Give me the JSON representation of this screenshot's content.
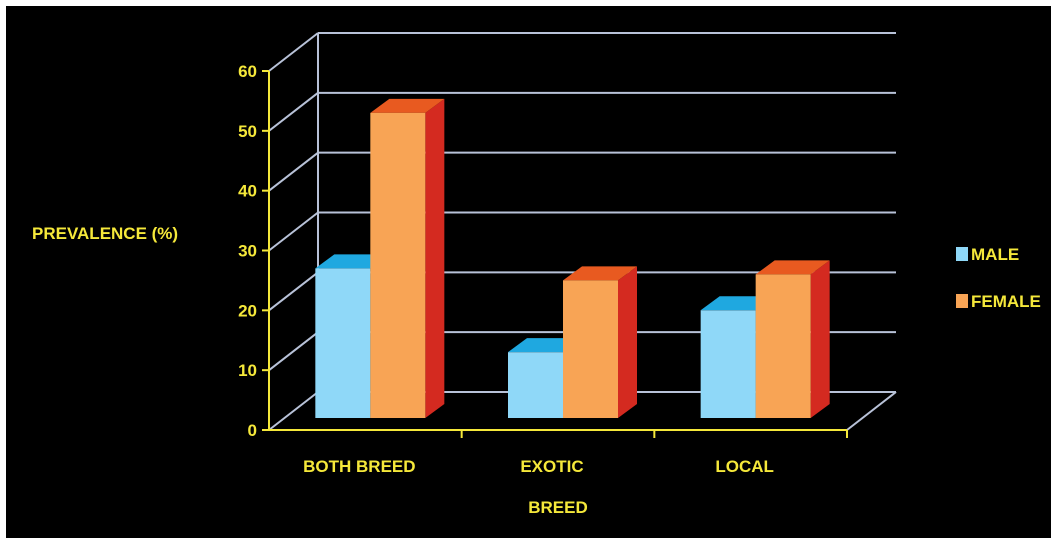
{
  "chart_data": {
    "type": "bar",
    "title": "",
    "xlabel": "BREED",
    "ylabel": "PREVALENCE (%)",
    "categories": [
      "BOTH BREED",
      "EXOTIC",
      "LOCAL"
    ],
    "series": [
      {
        "name": "MALE",
        "values": [
          25,
          11,
          18
        ]
      },
      {
        "name": "FEMALE",
        "values": [
          51,
          23,
          24
        ]
      }
    ],
    "ylim": [
      0,
      60
    ],
    "yticks": [
      "0",
      "10",
      "20",
      "30",
      "40",
      "50",
      "60"
    ],
    "grid": true,
    "legend": "right",
    "three_d": true
  },
  "colors": {
    "background": "#000000",
    "text": "#f5e83a",
    "axis": "#f5e83a",
    "grid": "#b8c2d8",
    "male_front": "#8fd8f8",
    "male_top": "#1fa8e0",
    "male_side": "#2a9fd4",
    "female_front": "#f8a455",
    "female_top": "#e85a20",
    "female_side": "#d42a20"
  }
}
